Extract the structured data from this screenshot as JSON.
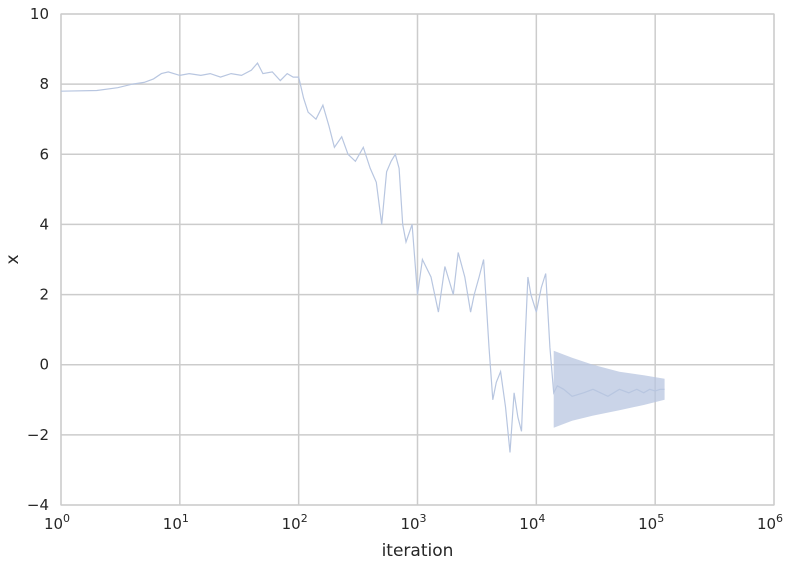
{
  "chart_data": {
    "type": "line",
    "title": "",
    "xlabel": "iteration",
    "ylabel": "x",
    "xscale": "log",
    "xlim": [
      1,
      1000000
    ],
    "ylim": [
      -4,
      10
    ],
    "grid": true,
    "legend": "none",
    "x_ticks": [
      {
        "base": "10",
        "exp": "0"
      },
      {
        "base": "10",
        "exp": "1"
      },
      {
        "base": "10",
        "exp": "2"
      },
      {
        "base": "10",
        "exp": "3"
      },
      {
        "base": "10",
        "exp": "4"
      },
      {
        "base": "10",
        "exp": "5"
      },
      {
        "base": "10",
        "exp": "6"
      }
    ],
    "y_ticks": [
      "−4",
      "−2",
      "0",
      "2",
      "4",
      "6",
      "8",
      "10"
    ],
    "colors": {
      "line": "#b8c6e0",
      "grid": "#cccccc",
      "axes_edge": "#cccccc"
    },
    "series": [
      {
        "x": [
          1,
          2,
          3,
          4,
          5,
          6,
          7,
          8,
          10,
          12,
          15,
          18,
          22,
          27,
          33,
          40,
          45,
          50,
          60,
          70,
          80,
          90,
          100,
          110,
          120,
          140,
          160,
          180,
          200,
          230,
          260,
          300,
          350,
          400,
          450,
          500,
          550,
          600,
          650,
          700,
          750,
          800,
          900,
          1000,
          1100,
          1300,
          1500,
          1700,
          2000,
          2200,
          2500,
          2800,
          3000,
          3300,
          3600,
          4000,
          4300,
          4600,
          5000,
          5500,
          6000,
          6500,
          7000,
          7500,
          8000,
          8500,
          9000,
          10000,
          11000,
          12000,
          13000,
          14000,
          15000,
          17000,
          20000,
          25000,
          30000,
          40000,
          50000,
          60000,
          70000,
          80000,
          90000,
          100000,
          110000,
          120000
        ],
        "y": [
          7.8,
          7.82,
          7.9,
          8.0,
          8.05,
          8.15,
          8.3,
          8.35,
          8.25,
          8.3,
          8.25,
          8.3,
          8.2,
          8.3,
          8.25,
          8.4,
          8.6,
          8.3,
          8.35,
          8.1,
          8.3,
          8.2,
          8.2,
          7.6,
          7.2,
          7.0,
          7.4,
          6.8,
          6.2,
          6.5,
          6.0,
          5.8,
          6.2,
          5.6,
          5.2,
          4.0,
          5.5,
          5.8,
          6.0,
          5.6,
          4.0,
          3.5,
          4.0,
          2.0,
          3.0,
          2.5,
          1.5,
          2.8,
          2.0,
          3.2,
          2.5,
          1.5,
          2.0,
          2.5,
          3.0,
          0.5,
          -1.0,
          -0.5,
          -0.2,
          -1.2,
          -2.5,
          -0.8,
          -1.5,
          -1.9,
          0.5,
          2.5,
          2.0,
          1.5,
          2.2,
          2.6,
          0.5,
          -0.8,
          -0.6,
          -0.7,
          -0.9,
          -0.8,
          -0.7,
          -0.9,
          -0.7,
          -0.8,
          -0.7,
          -0.8,
          -0.7,
          -0.75,
          -0.7,
          -0.7
        ],
        "envelope": {
          "x": [
            14000,
            20000,
            30000,
            50000,
            80000,
            120000
          ],
          "low": [
            -1.8,
            -1.6,
            -1.45,
            -1.3,
            -1.15,
            -1.0
          ],
          "high": [
            0.4,
            0.2,
            0.0,
            -0.2,
            -0.3,
            -0.4
          ]
        }
      }
    ]
  }
}
